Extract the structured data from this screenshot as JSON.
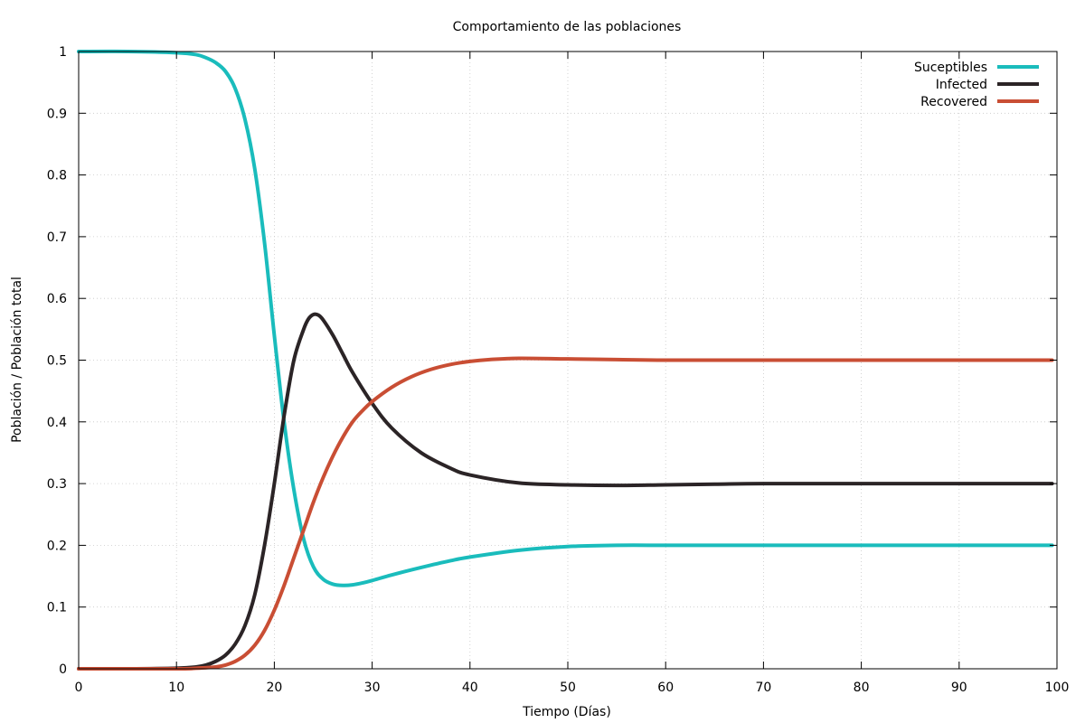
{
  "chart_data": {
    "type": "line",
    "title": "Comportamiento de las poblaciones",
    "xlabel": "Tiempo (Días)",
    "ylabel": "Población / Población total",
    "xlim": [
      0,
      100
    ],
    "ylim": [
      0,
      1
    ],
    "xticks": [
      0,
      10,
      20,
      30,
      40,
      50,
      60,
      70,
      80,
      90,
      100
    ],
    "yticks": [
      0,
      0.1,
      0.2,
      0.3,
      0.4,
      0.5,
      0.6,
      0.7,
      0.8,
      0.9,
      1
    ],
    "grid": true,
    "legend_position": "top-right",
    "series": [
      {
        "name": "Suceptibles",
        "color": "#1abcbc",
        "x": [
          0,
          5,
          10,
          12,
          13,
          14,
          15,
          16,
          17,
          18,
          19,
          20,
          21,
          22,
          23,
          24,
          25,
          26,
          27,
          28,
          29,
          30,
          32,
          35,
          38,
          40,
          45,
          50,
          55,
          60,
          65,
          68,
          70,
          80,
          90,
          99.5
        ],
        "y": [
          1,
          1,
          0.998,
          0.995,
          0.99,
          0.982,
          0.968,
          0.94,
          0.89,
          0.81,
          0.69,
          0.54,
          0.4,
          0.29,
          0.21,
          0.165,
          0.145,
          0.137,
          0.135,
          0.136,
          0.139,
          0.143,
          0.152,
          0.164,
          0.175,
          0.181,
          0.192,
          0.198,
          0.2,
          0.2,
          0.2,
          0.2,
          0.2,
          0.2,
          0.2,
          0.2
        ]
      },
      {
        "name": "Infected",
        "color": "#2b2426",
        "x": [
          0,
          5,
          10,
          12,
          13,
          14,
          15,
          16,
          17,
          18,
          19,
          20,
          21,
          22,
          23,
          23.5,
          24,
          24.5,
          25,
          26,
          27,
          28,
          30,
          32,
          35,
          38,
          40,
          45,
          50,
          55,
          60,
          65,
          70,
          80,
          90,
          99.5
        ],
        "y": [
          0,
          0,
          0.001,
          0.003,
          0.006,
          0.012,
          0.022,
          0.04,
          0.07,
          0.12,
          0.2,
          0.3,
          0.41,
          0.5,
          0.55,
          0.567,
          0.574,
          0.573,
          0.565,
          0.54,
          0.51,
          0.48,
          0.43,
          0.39,
          0.35,
          0.325,
          0.314,
          0.301,
          0.298,
          0.297,
          0.298,
          0.299,
          0.3,
          0.3,
          0.3,
          0.3
        ]
      },
      {
        "name": "Recovered",
        "color": "#c94e34",
        "x": [
          0,
          10,
          12,
          14,
          15,
          16,
          17,
          18,
          19,
          20,
          21,
          22,
          23,
          24,
          25,
          26,
          27,
          28,
          29,
          30,
          32,
          34,
          36,
          38,
          40,
          42,
          45,
          50,
          55,
          60,
          70,
          80,
          90,
          99.5
        ],
        "y": [
          0,
          0,
          0.001,
          0.003,
          0.006,
          0.012,
          0.022,
          0.038,
          0.062,
          0.095,
          0.135,
          0.18,
          0.225,
          0.27,
          0.31,
          0.345,
          0.375,
          0.4,
          0.418,
          0.433,
          0.456,
          0.473,
          0.485,
          0.493,
          0.498,
          0.501,
          0.503,
          0.502,
          0.501,
          0.5,
          0.5,
          0.5,
          0.5,
          0.5
        ]
      }
    ]
  }
}
